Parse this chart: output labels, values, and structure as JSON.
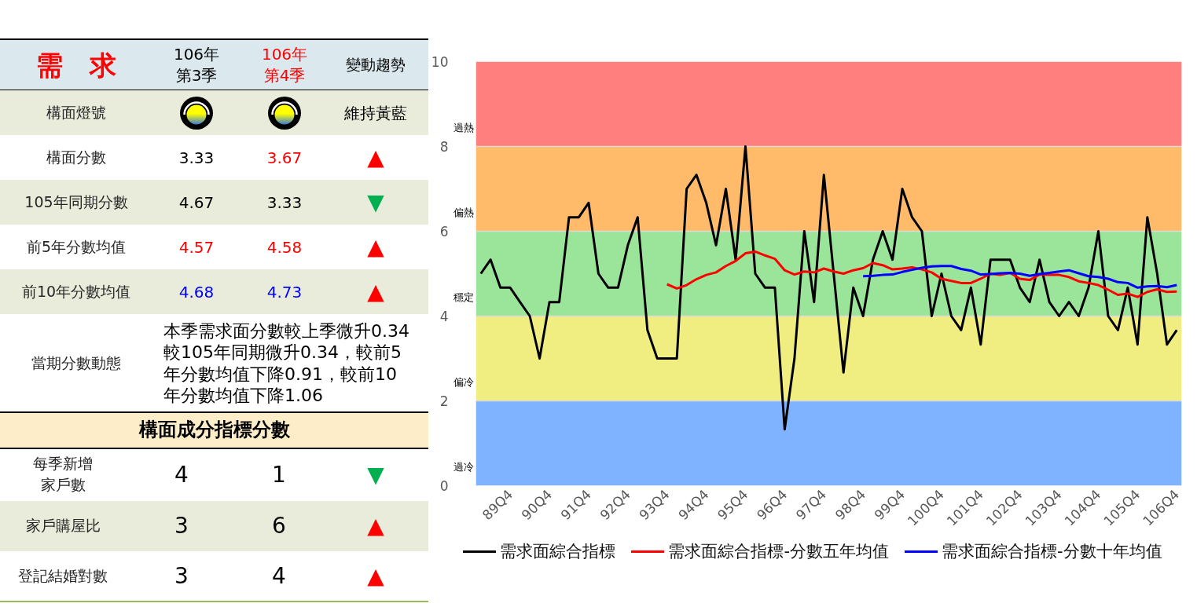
{
  "chart_data": [
    {
      "type": "other",
      "title": "需　求",
      "categories": [
        "106年第3季",
        "106年第4季",
        "變動趨勢"
      ],
      "y_categories": [
        "構面燈號",
        "構面分數",
        "105年同期分數",
        "前5年分數均值",
        "前10年分數均值",
        "當期分數動態",
        "構面成分指標分數",
        "每季新增家戶數",
        "家戶購屋比",
        "登記結婚對數"
      ],
      "cell_labels": [
        [
          null,
          null,
          "維持黃藍"
        ],
        [
          "3.33",
          "3.67",
          "▲"
        ],
        [
          "4.67",
          "3.33",
          "▼"
        ],
        [
          "4.57",
          "4.58",
          "▲"
        ],
        [
          "4.68",
          "4.73",
          "▲"
        ],
        [
          "本季需求面分數較上季微升0.34較105年同期微升0.34，較前5年分數均值下降0.91，較前10年分數均值下降1.06",
          null,
          null
        ],
        [
          null,
          null,
          null
        ],
        [
          "4",
          "1",
          "▼"
        ],
        [
          "3",
          "6",
          "▲"
        ],
        [
          "3",
          "4",
          "▲"
        ]
      ],
      "colors": [
        [
          null,
          "#ff0000",
          null
        ],
        [
          null,
          null,
          null
        ],
        [
          null,
          "#ff0000",
          "#ff0000"
        ],
        [
          null,
          null,
          "#00b050"
        ],
        [
          "#ff0000",
          "#ff0000",
          "#ff0000"
        ],
        [
          "#0000ff",
          "#0000ff",
          "#ff0000"
        ],
        [
          null,
          null,
          null
        ],
        [
          null,
          null,
          null
        ],
        [
          null,
          null,
          "#00b050"
        ],
        [
          null,
          null,
          "#ff0000"
        ],
        [
          null,
          null,
          "#ff0000"
        ]
      ]
    },
    {
      "type": "line",
      "categories": [
        null,
        null,
        null,
        "89Q4",
        null,
        null,
        null,
        "90Q4",
        null,
        null,
        null,
        "91Q4",
        null,
        null,
        null,
        "92Q4",
        null,
        null,
        null,
        "93Q4",
        null,
        null,
        null,
        "94Q4",
        null,
        null,
        null,
        "95Q4",
        null,
        null,
        null,
        "96Q4",
        null,
        null,
        null,
        "97Q4",
        null,
        null,
        null,
        "98Q4",
        null,
        null,
        null,
        "99Q4",
        null,
        null,
        null,
        "100Q4",
        null,
        null,
        null,
        "101Q4",
        null,
        null,
        null,
        "102Q4",
        null,
        null,
        null,
        "103Q4",
        null,
        null,
        null,
        "104Q4",
        null,
        null,
        null,
        "105Q4",
        null,
        null,
        null,
        "106Q4"
      ],
      "series": [
        {
          "name": "需求面綜合指標",
          "color": "#000000",
          "values": [
            5.0,
            5.33,
            4.67,
            4.67,
            4.33,
            4.0,
            3.0,
            4.33,
            4.33,
            6.33,
            6.33,
            6.67,
            5.0,
            4.67,
            4.67,
            5.67,
            6.33,
            3.67,
            3.0,
            3.0,
            3.0,
            7.0,
            7.33,
            6.67,
            5.67,
            7.0,
            5.33,
            8.0,
            5.0,
            4.67,
            4.67,
            1.33,
            3.0,
            6.0,
            4.33,
            7.33,
            5.0,
            2.67,
            4.67,
            4.0,
            5.33,
            6.0,
            5.33,
            7.0,
            6.33,
            6.0,
            4.0,
            5.0,
            4.0,
            3.67,
            4.67,
            3.33,
            5.33,
            5.33,
            5.33,
            4.67,
            4.33,
            5.33,
            4.33,
            4.0,
            4.33,
            4.0,
            4.67,
            6.0,
            4.0,
            3.67,
            4.67,
            3.33,
            6.33,
            5.0,
            3.33,
            3.67
          ]
        },
        {
          "name": "需求面綜合指標-分數五年均值",
          "color": "#ff0000",
          "values": [
            null,
            null,
            null,
            null,
            null,
            null,
            null,
            null,
            null,
            null,
            null,
            null,
            null,
            null,
            null,
            null,
            null,
            null,
            null,
            4.75,
            4.65,
            4.73,
            4.87,
            4.97,
            5.03,
            5.18,
            5.3,
            5.48,
            5.52,
            5.43,
            5.35,
            5.08,
            4.98,
            5.05,
            5.03,
            5.12,
            5.05,
            5.0,
            5.08,
            5.13,
            5.25,
            5.2,
            5.1,
            5.12,
            5.15,
            5.1,
            5.03,
            4.88,
            4.83,
            4.78,
            4.78,
            4.88,
            5.0,
            4.97,
            5.02,
            4.88,
            4.85,
            4.98,
            4.97,
            4.97,
            4.92,
            4.82,
            4.78,
            4.73,
            4.62,
            4.5,
            4.53,
            4.45,
            4.57,
            4.63,
            4.57,
            4.58
          ]
        },
        {
          "name": "需求面綜合指標-分數十年均值",
          "color": "#0000ff",
          "values": [
            null,
            null,
            null,
            null,
            null,
            null,
            null,
            null,
            null,
            null,
            null,
            null,
            null,
            null,
            null,
            null,
            null,
            null,
            null,
            null,
            null,
            null,
            null,
            null,
            null,
            null,
            null,
            null,
            null,
            null,
            null,
            null,
            null,
            null,
            null,
            null,
            null,
            null,
            null,
            4.94,
            4.95,
            4.97,
            4.98,
            5.04,
            5.09,
            5.14,
            5.17,
            5.18,
            5.18,
            5.11,
            5.07,
            4.98,
            4.99,
            5.01,
            5.02,
            5.0,
            4.95,
            4.99,
            5.02,
            5.05,
            5.08,
            5.01,
            4.94,
            4.92,
            4.88,
            4.8,
            4.78,
            4.67,
            4.7,
            4.71,
            4.68,
            4.73
          ]
        }
      ],
      "ylim": [
        0,
        10
      ],
      "yticks": [
        0,
        2,
        4,
        6,
        8,
        10
      ],
      "grid": "y",
      "legend": "bottom",
      "bands": [
        {
          "axis": "y",
          "from": 8,
          "to": 10,
          "color": "#ff7f7f",
          "label": "過熱"
        },
        {
          "axis": "y",
          "from": 6,
          "to": 8,
          "color": "#ffbb6a",
          "label": "偏熱"
        },
        {
          "axis": "y",
          "from": 4,
          "to": 6,
          "color": "#9be59b",
          "label": "穩定"
        },
        {
          "axis": "y",
          "from": 2,
          "to": 4,
          "color": "#f0ee80",
          "label": "偏冷"
        },
        {
          "axis": "y",
          "from": 0,
          "to": 2,
          "color": "#80b3ff",
          "label": "過冷"
        }
      ]
    }
  ]
}
